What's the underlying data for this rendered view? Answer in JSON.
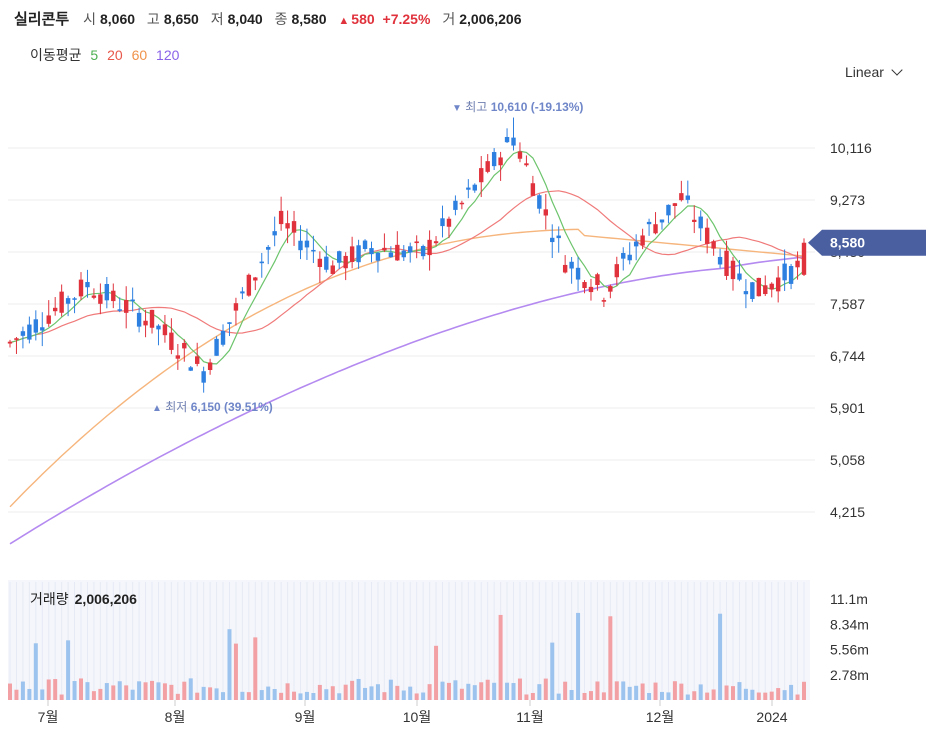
{
  "header": {
    "stock_name": "실리콘투",
    "open_label": "시",
    "open": "8,060",
    "high_label": "고",
    "high": "8,650",
    "low_label": "저",
    "low": "8,040",
    "close_label": "종",
    "close": "8,580",
    "change_arrow": "▲",
    "change": "580",
    "change_pct": "+7.25%",
    "volume_label": "거",
    "volume": "2,006,206"
  },
  "moving_average": {
    "label": "이동평균",
    "periods": [
      {
        "period": "5",
        "color": "#4caf50"
      },
      {
        "period": "20",
        "color": "#e8574a"
      },
      {
        "period": "60",
        "color": "#f0924a"
      },
      {
        "period": "120",
        "color": "#8a63e8"
      }
    ]
  },
  "scale_selector": "Linear",
  "colors": {
    "up": "#e0323c",
    "down": "#2d7fe0",
    "ma5": "#6cc46c",
    "ma20": "#f07a7a",
    "ma60": "#f6b57c",
    "ma120": "#b48af0",
    "price_tag": "#4a5fa0",
    "annotation": "#6f86c8"
  },
  "chart_data": [
    {
      "type": "candlestick",
      "y_ticks": [
        "10,116",
        "9,273",
        "8,430",
        "7,587",
        "6,744",
        "5,901",
        "5,058",
        "4,215"
      ],
      "y_tick_values": [
        10116,
        9273,
        8430,
        7587,
        6744,
        5901,
        5058,
        4215
      ],
      "x_ticks": [
        "7월",
        "8월",
        "9월",
        "10월",
        "11월",
        "12월",
        "2024"
      ],
      "current_price_tag": "8,580",
      "current_price": 8580,
      "high_annotation": {
        "marker": "▼",
        "label": "최고",
        "value": "10,610 (-19.13%)",
        "price": 10610
      },
      "low_annotation": {
        "marker": "▲",
        "label": "최저",
        "value": "6,150 (39.51%)",
        "price": 6150
      },
      "candles_count": 124,
      "last_candle": {
        "open": 8060,
        "high": 8650,
        "low": 8040,
        "close": 8580
      }
    },
    {
      "type": "bar",
      "title_label": "거래량",
      "title_value": "2,006,206",
      "y_ticks": [
        "11.1m",
        "8.34m",
        "5.56m",
        "2.78m"
      ],
      "y_tick_values": [
        11100000,
        8340000,
        5560000,
        2780000
      ]
    }
  ]
}
